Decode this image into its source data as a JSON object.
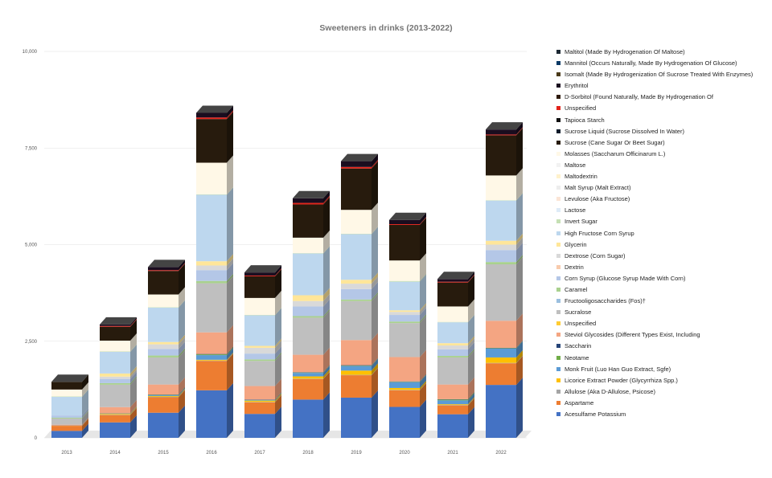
{
  "chart_data": {
    "type": "bar",
    "stacked": true,
    "style": "3d-column",
    "title": "Sweeteners in drinks (2013-2022)",
    "xlabel": "",
    "ylabel": "",
    "ylim": [
      0,
      10000
    ],
    "yticks": [
      0,
      2500,
      5000,
      7500,
      10000
    ],
    "ytick_labels": [
      "0",
      "2,500",
      "5,000",
      "7,500",
      "10,000"
    ],
    "grid": true,
    "legend_position": "right",
    "categories": [
      "2013",
      "2014",
      "2015",
      "2016",
      "2017",
      "2018",
      "2019",
      "2020",
      "2021",
      "2022"
    ],
    "series": [
      {
        "name": "Acesulfame Potassium",
        "color": "#4472c4",
        "values": [
          180,
          400,
          650,
          1230,
          620,
          990,
          1040,
          800,
          610,
          1370
        ]
      },
      {
        "name": "Aspartame",
        "color": "#ed7d31",
        "values": [
          130,
          190,
          400,
          760,
          300,
          530,
          580,
          430,
          230,
          560
        ]
      },
      {
        "name": "Allulose (Aka D-Allulose, Psicose)",
        "color": "#a5a5a5",
        "values": [
          0,
          10,
          10,
          10,
          10,
          10,
          10,
          10,
          10,
          10
        ]
      },
      {
        "name": "Licorice Extract Powder (Glycyrrhiza Spp.)",
        "color": "#ffc000",
        "values": [
          5,
          20,
          20,
          20,
          30,
          60,
          110,
          50,
          20,
          140
        ]
      },
      {
        "name": "Monk Fruit (Luo Han Guo Extract, Sgfe)",
        "color": "#5b9bd5",
        "values": [
          0,
          5,
          20,
          120,
          10,
          90,
          120,
          150,
          100,
          230
        ]
      },
      {
        "name": "Neotame",
        "color": "#70ad47",
        "values": [
          0,
          5,
          10,
          20,
          10,
          10,
          10,
          10,
          20,
          10
        ]
      },
      {
        "name": "Saccharin",
        "color": "#264478",
        "values": [
          5,
          5,
          10,
          10,
          10,
          10,
          10,
          10,
          10,
          10
        ]
      },
      {
        "name": "Steviol Glycosides (Different Types Exist, Including",
        "color": "#f4a582",
        "values": [
          20,
          160,
          260,
          560,
          350,
          450,
          650,
          630,
          380,
          700
        ]
      },
      {
        "name": "Unspecified",
        "color": "#ffcc33",
        "values": [
          0,
          0,
          0,
          0,
          0,
          0,
          0,
          0,
          0,
          0
        ]
      },
      {
        "name": "Sucralose",
        "color": "#bfbfbf",
        "values": [
          160,
          580,
          700,
          1270,
          650,
          960,
          1010,
          880,
          700,
          1460
        ]
      },
      {
        "name": "Fructooligosaccharides (Fos)†",
        "color": "#9bbfdf",
        "values": [
          0,
          0,
          0,
          0,
          0,
          0,
          0,
          0,
          0,
          0
        ]
      },
      {
        "name": "Caramel",
        "color": "#a9d18e",
        "values": [
          20,
          40,
          50,
          60,
          40,
          40,
          40,
          40,
          40,
          60
        ]
      },
      {
        "name": "Corn Syrup (Glucose Syrup Made With Corn)",
        "color": "#b4c7e7",
        "values": [
          60,
          110,
          170,
          280,
          150,
          250,
          270,
          170,
          170,
          310
        ]
      },
      {
        "name": "Dextrin",
        "color": "#f8cbad",
        "values": [
          0,
          0,
          0,
          0,
          0,
          0,
          0,
          0,
          0,
          0
        ]
      },
      {
        "name": "Dextrose (Corn Sugar)",
        "color": "#d9d9d9",
        "values": [
          0,
          60,
          120,
          120,
          150,
          140,
          140,
          80,
          100,
          140
        ]
      },
      {
        "name": "Glycerin",
        "color": "#ffe699",
        "values": [
          0,
          80,
          60,
          110,
          50,
          150,
          100,
          40,
          60,
          100
        ]
      },
      {
        "name": "High Fructose Corn Syrup",
        "color": "#bdd7ee",
        "values": [
          480,
          560,
          890,
          1720,
          790,
          1080,
          1180,
          740,
          540,
          1040
        ]
      },
      {
        "name": "Invert Sugar",
        "color": "#c5e0b4",
        "values": [
          10,
          10,
          10,
          10,
          10,
          10,
          10,
          20,
          10,
          10
        ]
      },
      {
        "name": "Lactose",
        "color": "#deebf7",
        "values": [
          0,
          0,
          0,
          0,
          0,
          0,
          0,
          0,
          0,
          0
        ]
      },
      {
        "name": "Levulose (Aka Fructose)",
        "color": "#fbe5d6",
        "values": [
          0,
          0,
          0,
          0,
          0,
          0,
          0,
          0,
          0,
          0
        ]
      },
      {
        "name": "Malt Syrup (Malt Extract)",
        "color": "#ededed",
        "values": [
          0,
          0,
          0,
          0,
          0,
          0,
          0,
          0,
          0,
          0
        ]
      },
      {
        "name": "Maltodextrin",
        "color": "#fff2cc",
        "values": [
          0,
          0,
          0,
          0,
          0,
          0,
          0,
          0,
          0,
          0
        ]
      },
      {
        "name": "Maltose",
        "color": "#f2f2f2",
        "values": [
          0,
          0,
          0,
          0,
          0,
          0,
          0,
          0,
          0,
          0
        ]
      },
      {
        "name": "Molasses (Saccharum Officinarum L.)",
        "color": "#fff8e7",
        "values": [
          180,
          280,
          330,
          820,
          440,
          400,
          620,
          530,
          400,
          640
        ]
      },
      {
        "name": "Sucrose (Cane Sugar Or Beet Sugar)",
        "color": "#271b0d",
        "values": [
          200,
          360,
          610,
          1130,
          560,
          860,
          1070,
          920,
          620,
          1040
        ]
      },
      {
        "name": "Sucrose Liquid (Sucrose Dissolved In Water)",
        "color": "#0d1b2a",
        "values": [
          0,
          0,
          0,
          0,
          0,
          0,
          0,
          0,
          0,
          0
        ]
      },
      {
        "name": "Tapioca Starch",
        "color": "#111111",
        "values": [
          0,
          0,
          0,
          0,
          0,
          0,
          0,
          0,
          0,
          0
        ]
      },
      {
        "name": "Unspecified",
        "color": "#e2231a",
        "values": [
          0,
          20,
          20,
          40,
          20,
          40,
          40,
          20,
          20,
          20
        ]
      },
      {
        "name": "D-Sorbitol (Found Naturally, Made By Hydrogenation Of",
        "color": "#2e1a0c",
        "values": [
          0,
          0,
          0,
          0,
          0,
          0,
          0,
          0,
          0,
          0
        ]
      },
      {
        "name": "Erythritol",
        "color": "#1a0d1f",
        "values": [
          0,
          40,
          80,
          120,
          80,
          120,
          150,
          110,
          70,
          130
        ]
      },
      {
        "name": "Isomalt (Made By Hydrogenization Of Sucrose Treated With Enzymes)",
        "color": "#4a3a1a",
        "values": [
          0,
          0,
          0,
          0,
          0,
          0,
          0,
          0,
          0,
          0
        ]
      },
      {
        "name": "Mannitol (Occurs Naturally, Made By Hydrogenation Of Glucose)",
        "color": "#0b3a66",
        "values": [
          0,
          0,
          0,
          0,
          0,
          0,
          0,
          0,
          0,
          0
        ]
      },
      {
        "name": "Maltitol (Made By Hydrogenation Of Maltose)",
        "color": "#1c2833",
        "values": [
          0,
          0,
          0,
          0,
          0,
          0,
          0,
          0,
          0,
          0
        ]
      }
    ]
  }
}
